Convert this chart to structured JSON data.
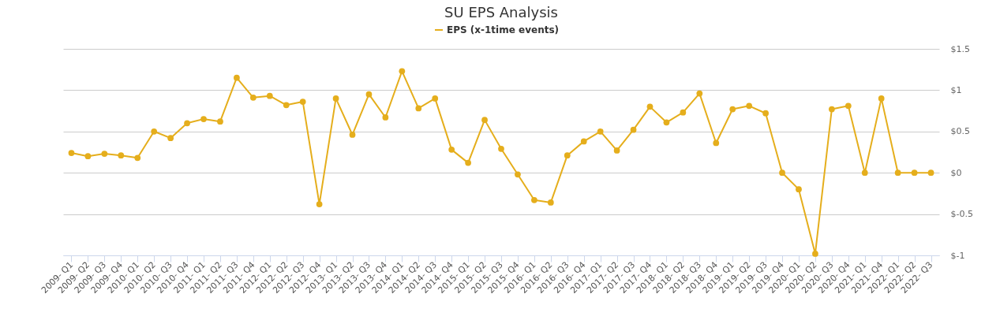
{
  "chart_data": {
    "type": "line",
    "title": "SU EPS Analysis",
    "categories": [
      "2009- Q1",
      "2009- Q2",
      "2009- Q3",
      "2009- Q4",
      "2010- Q1",
      "2010- Q2",
      "2010- Q3",
      "2010- Q4",
      "2011- Q1",
      "2011- Q2",
      "2011- Q3",
      "2011- Q4",
      "2012- Q1",
      "2012- Q2",
      "2012- Q3",
      "2012- Q4",
      "2013- Q1",
      "2013- Q2",
      "2013- Q3",
      "2013- Q4",
      "2014- Q1",
      "2014- Q2",
      "2014- Q3",
      "2014- Q4",
      "2015- Q1",
      "2015- Q2",
      "2015- Q3",
      "2015- Q4",
      "2016- Q1",
      "2016- Q2",
      "2016- Q3",
      "2016- Q4",
      "2017- Q1",
      "2017- Q2",
      "2017- Q3",
      "2017- Q4",
      "2018- Q1",
      "2018- Q2",
      "2018- Q3",
      "2018- Q4",
      "2019- Q1",
      "2019- Q2",
      "2019- Q3",
      "2019- Q4",
      "2020- Q1",
      "2020- Q2",
      "2020- Q3",
      "2020- Q4",
      "2021- Q1",
      "2021- Q4",
      "2022- Q1",
      "2022- Q2",
      "2022- Q3"
    ],
    "series": [
      {
        "name": "EPS (x-1time events)",
        "color": "#e5ae1c",
        "values": [
          0.24,
          0.2,
          0.23,
          0.21,
          0.18,
          0.5,
          0.42,
          0.6,
          0.65,
          0.62,
          1.15,
          0.91,
          0.93,
          0.82,
          0.86,
          -0.38,
          0.9,
          0.46,
          0.95,
          0.67,
          1.23,
          0.78,
          0.9,
          0.28,
          0.12,
          0.64,
          0.29,
          -0.02,
          -0.33,
          -0.36,
          0.21,
          0.38,
          0.5,
          0.27,
          0.52,
          0.8,
          0.61,
          0.73,
          0.96,
          0.36,
          0.77,
          0.81,
          0.72,
          0,
          -0.2,
          -0.98,
          0.77,
          0.81,
          0,
          0.9,
          0,
          0,
          0
        ]
      }
    ],
    "ylim": [
      -1,
      1.5
    ],
    "yticks": [
      {
        "value": -1,
        "label": "$-1"
      },
      {
        "value": -0.5,
        "label": "$-0.5"
      },
      {
        "value": 0,
        "label": "$0"
      },
      {
        "value": 0.5,
        "label": "$0.5"
      },
      {
        "value": 1,
        "label": "$1"
      },
      {
        "value": 1.5,
        "label": "$1.5"
      }
    ],
    "grid": "y",
    "legend": "top",
    "marker": "circle",
    "line_style": "solid"
  }
}
